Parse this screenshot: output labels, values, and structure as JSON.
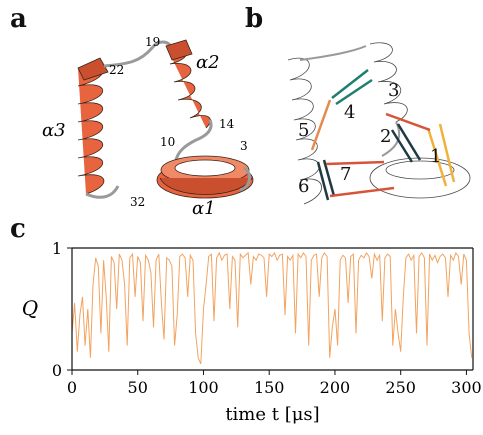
{
  "panels": {
    "a": "a",
    "b": "b",
    "c": "c"
  },
  "panel_a": {
    "helix_labels": [
      "α3",
      "α2",
      "α1"
    ],
    "residue_labels": [
      "19",
      "22",
      "10",
      "14",
      "3",
      "32"
    ],
    "helix_color": "#e8643f"
  },
  "panel_b": {
    "contact_labels": [
      "1",
      "2",
      "3",
      "4",
      "5",
      "6",
      "7"
    ],
    "contact_colors": [
      "#f0b23a",
      "#1e3a44",
      "#d6553a",
      "#1f7e6e",
      "#e58a4e",
      "#1e3a44",
      "#d6553a"
    ]
  },
  "chart_data": {
    "type": "line",
    "xlabel": "time t [μs]",
    "ylabel": "Q",
    "xlim": [
      0,
      305
    ],
    "ylim": [
      0,
      1
    ],
    "xticks": [
      0,
      50,
      100,
      150,
      200,
      250,
      300
    ],
    "yticks": [
      0,
      1
    ],
    "line_color": "#f2a360",
    "series": [
      {
        "x": [
          0,
          2,
          4,
          6,
          8,
          10,
          12,
          14,
          16,
          18,
          20,
          22,
          24,
          26,
          28,
          30,
          32,
          34,
          36,
          38,
          40,
          42,
          44,
          46,
          48,
          50,
          52,
          54,
          56,
          58,
          60,
          62,
          64,
          66,
          68,
          70,
          72,
          74,
          76,
          78,
          80,
          82,
          84,
          86,
          88,
          90,
          92,
          94,
          96,
          98,
          100,
          102,
          104,
          106,
          108,
          110,
          112,
          114,
          116,
          118,
          120,
          122,
          124,
          126,
          128,
          130,
          132,
          134,
          136,
          138,
          140,
          142,
          144,
          146,
          148,
          150,
          152,
          154,
          156,
          158,
          160,
          162,
          164,
          166,
          168,
          170,
          172,
          174,
          176,
          178,
          180,
          182,
          184,
          186,
          188,
          190,
          192,
          194,
          196,
          198,
          200,
          202,
          204,
          206,
          208,
          210,
          212,
          214,
          216,
          218,
          220,
          222,
          224,
          226,
          228,
          230,
          232,
          234,
          236,
          238,
          240,
          242,
          244,
          246,
          248,
          250,
          252,
          254,
          256,
          258,
          260,
          262,
          264,
          266,
          268,
          270,
          272,
          274,
          276,
          278,
          280,
          282,
          284,
          286,
          288,
          290,
          292,
          294,
          296,
          298,
          300,
          302,
          304
        ],
        "values": [
          0.3,
          0.55,
          0.15,
          0.45,
          0.6,
          0.2,
          0.5,
          0.1,
          0.7,
          0.92,
          0.85,
          0.3,
          0.9,
          0.6,
          0.15,
          0.93,
          0.88,
          0.5,
          0.95,
          0.9,
          0.7,
          0.2,
          0.92,
          0.95,
          0.6,
          0.93,
          0.88,
          0.4,
          0.94,
          0.9,
          0.8,
          0.35,
          0.9,
          0.95,
          0.55,
          0.25,
          0.92,
          0.9,
          0.85,
          0.2,
          0.45,
          0.93,
          0.95,
          0.92,
          0.6,
          0.94,
          0.9,
          0.3,
          0.1,
          0.05,
          0.5,
          0.7,
          0.93,
          0.95,
          0.4,
          0.92,
          0.96,
          0.9,
          0.94,
          0.95,
          0.5,
          0.93,
          0.9,
          0.35,
          0.95,
          0.92,
          0.94,
          0.96,
          0.7,
          0.93,
          0.9,
          0.95,
          0.94,
          0.92,
          0.6,
          0.95,
          0.93,
          0.96,
          0.9,
          0.94,
          0.95,
          0.45,
          0.93,
          0.9,
          0.94,
          0.3,
          0.95,
          0.92,
          0.96,
          0.93,
          0.2,
          0.9,
          0.94,
          0.95,
          0.6,
          0.92,
          0.96,
          0.93,
          0.1,
          0.35,
          0.5,
          0.2,
          0.9,
          0.94,
          0.92,
          0.55,
          0.93,
          0.95,
          0.3,
          0.9,
          0.94,
          0.92,
          0.96,
          0.93,
          0.75,
          0.95,
          0.9,
          0.94,
          0.4,
          0.92,
          0.95,
          0.93,
          0.2,
          0.5,
          0.3,
          0.15,
          0.6,
          0.92,
          0.95,
          0.9,
          0.94,
          0.3,
          0.93,
          0.96,
          0.92,
          0.2,
          0.95,
          0.9,
          0.94,
          0.88,
          0.93,
          0.95,
          0.92,
          0.6,
          0.94,
          0.9,
          0.96,
          0.93,
          0.7,
          0.95,
          0.9,
          0.3,
          0.1
        ]
      }
    ]
  }
}
